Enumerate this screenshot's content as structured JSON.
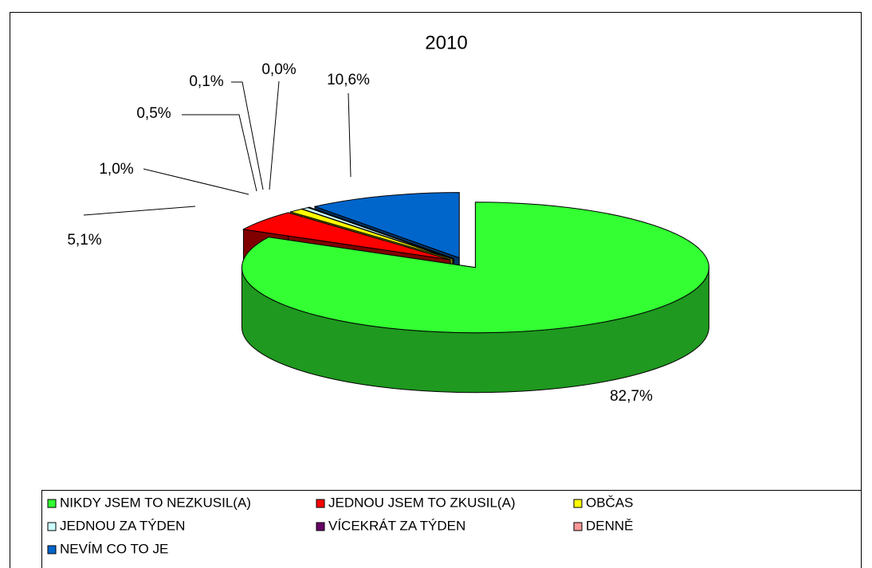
{
  "chart_data": {
    "type": "pie",
    "title": "2010",
    "categories": [
      "NIKDY JSEM TO NEZKUSIL(A)",
      "JEDNOU JSEM TO ZKUSIL(A)",
      "OBČAS",
      "JEDNOU ZA TÝDEN",
      "VÍCEKRÁT ZA TÝDEN",
      "DENNĚ",
      "NEVÍM CO TO JE"
    ],
    "values": [
      82.7,
      5.1,
      1.0,
      0.5,
      0.1,
      0.0,
      10.6
    ],
    "value_labels": [
      "82,7%",
      "5,1%",
      "1,0%",
      "0,5%",
      "0,1%",
      "0,0%",
      "10,6%"
    ],
    "colors": [
      "#33ff33",
      "#ff0000",
      "#ffff00",
      "#ccffff",
      "#660066",
      "#ff9999",
      "#0066cc"
    ]
  }
}
